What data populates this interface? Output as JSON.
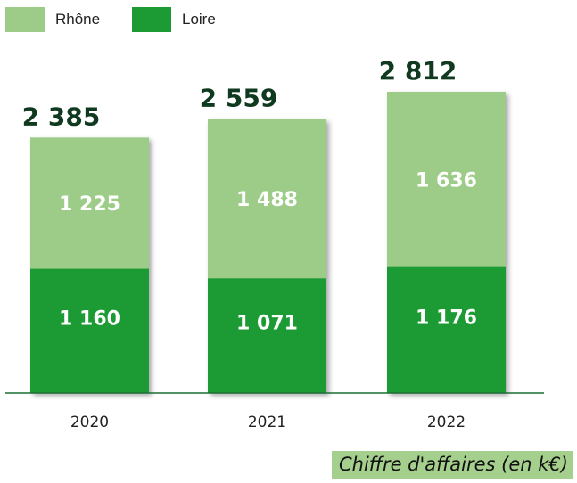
{
  "chart_data": {
    "type": "bar",
    "stacked": true,
    "categories": [
      "2020",
      "2021",
      "2022"
    ],
    "series": [
      {
        "name": "Loire",
        "values": [
          1160,
          1071,
          1176
        ],
        "color": "#1c9b35",
        "value_labels": [
          "1 160",
          "1 071",
          "1 176"
        ]
      },
      {
        "name": "Rhône",
        "values": [
          1225,
          1488,
          1636
        ],
        "color": "#9ccc87",
        "value_labels": [
          "1 225",
          "1 488",
          "1 636"
        ]
      }
    ],
    "totals": [
      2385,
      2559,
      2812
    ],
    "total_labels": [
      "2 385",
      "2 559",
      "2 812"
    ],
    "legend_position": "top-left",
    "grid": false,
    "total_label_color": "#0f3a1f"
  },
  "caption": "Chiffre d'affaires (en k€)"
}
